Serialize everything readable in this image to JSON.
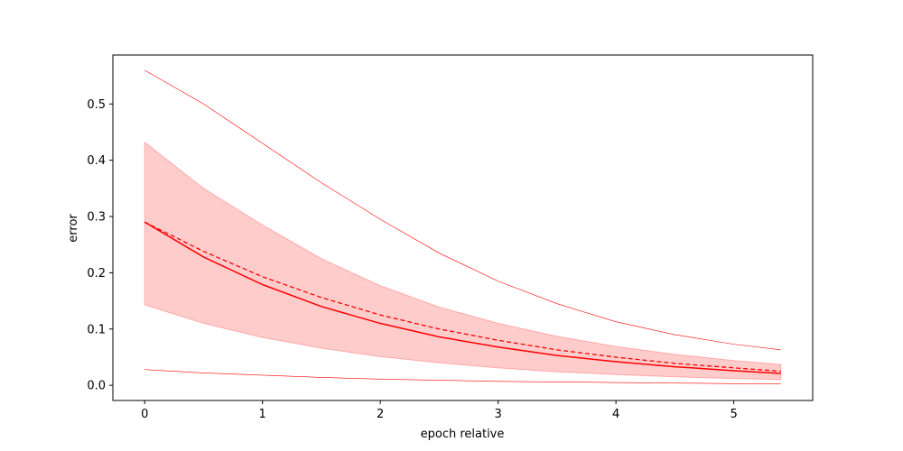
{
  "chart_data": {
    "type": "line",
    "title": "",
    "xlabel": "epoch relative",
    "ylabel": "error",
    "xlim": [
      -0.27,
      5.67
    ],
    "ylim": [
      -0.027,
      0.587
    ],
    "xticks": [
      0,
      1,
      2,
      3,
      4,
      5
    ],
    "xtick_labels": [
      "0",
      "1",
      "2",
      "3",
      "4",
      "5"
    ],
    "yticks": [
      0.0,
      0.1,
      0.2,
      0.3,
      0.4,
      0.5
    ],
    "ytick_labels": [
      "0.0",
      "0.1",
      "0.2",
      "0.3",
      "0.4",
      "0.5"
    ],
    "grid": false,
    "legend": "none",
    "color": "#ff0000",
    "band_fill": "#ff0000",
    "band_opacity": 0.2,
    "x": [
      0,
      0.5,
      1,
      1.5,
      2,
      2.5,
      3,
      3.5,
      4,
      4.5,
      5,
      5.4
    ],
    "series": [
      {
        "style": "solid",
        "values": [
          0.29,
          0.228,
          0.179,
          0.14,
          0.11,
          0.086,
          0.068,
          0.053,
          0.042,
          0.033,
          0.026,
          0.021
        ]
      },
      {
        "style": "dashed",
        "values": [
          0.29,
          0.238,
          0.193,
          0.156,
          0.125,
          0.1,
          0.08,
          0.063,
          0.05,
          0.039,
          0.031,
          0.025
        ]
      },
      {
        "style": "thin-upper",
        "values": [
          0.56,
          0.5,
          0.43,
          0.36,
          0.295,
          0.235,
          0.185,
          0.145,
          0.113,
          0.09,
          0.073,
          0.063
        ]
      },
      {
        "style": "thin-lower",
        "values": [
          0.028,
          0.022,
          0.018,
          0.014,
          0.011,
          0.009,
          0.007,
          0.006,
          0.005,
          0.004,
          0.003,
          0.003
        ]
      }
    ],
    "band": {
      "upper": [
        0.432,
        0.35,
        0.285,
        0.225,
        0.177,
        0.139,
        0.11,
        0.087,
        0.069,
        0.055,
        0.044,
        0.037
      ],
      "lower": [
        0.143,
        0.11,
        0.085,
        0.066,
        0.051,
        0.04,
        0.031,
        0.024,
        0.019,
        0.015,
        0.012,
        0.01
      ]
    }
  }
}
